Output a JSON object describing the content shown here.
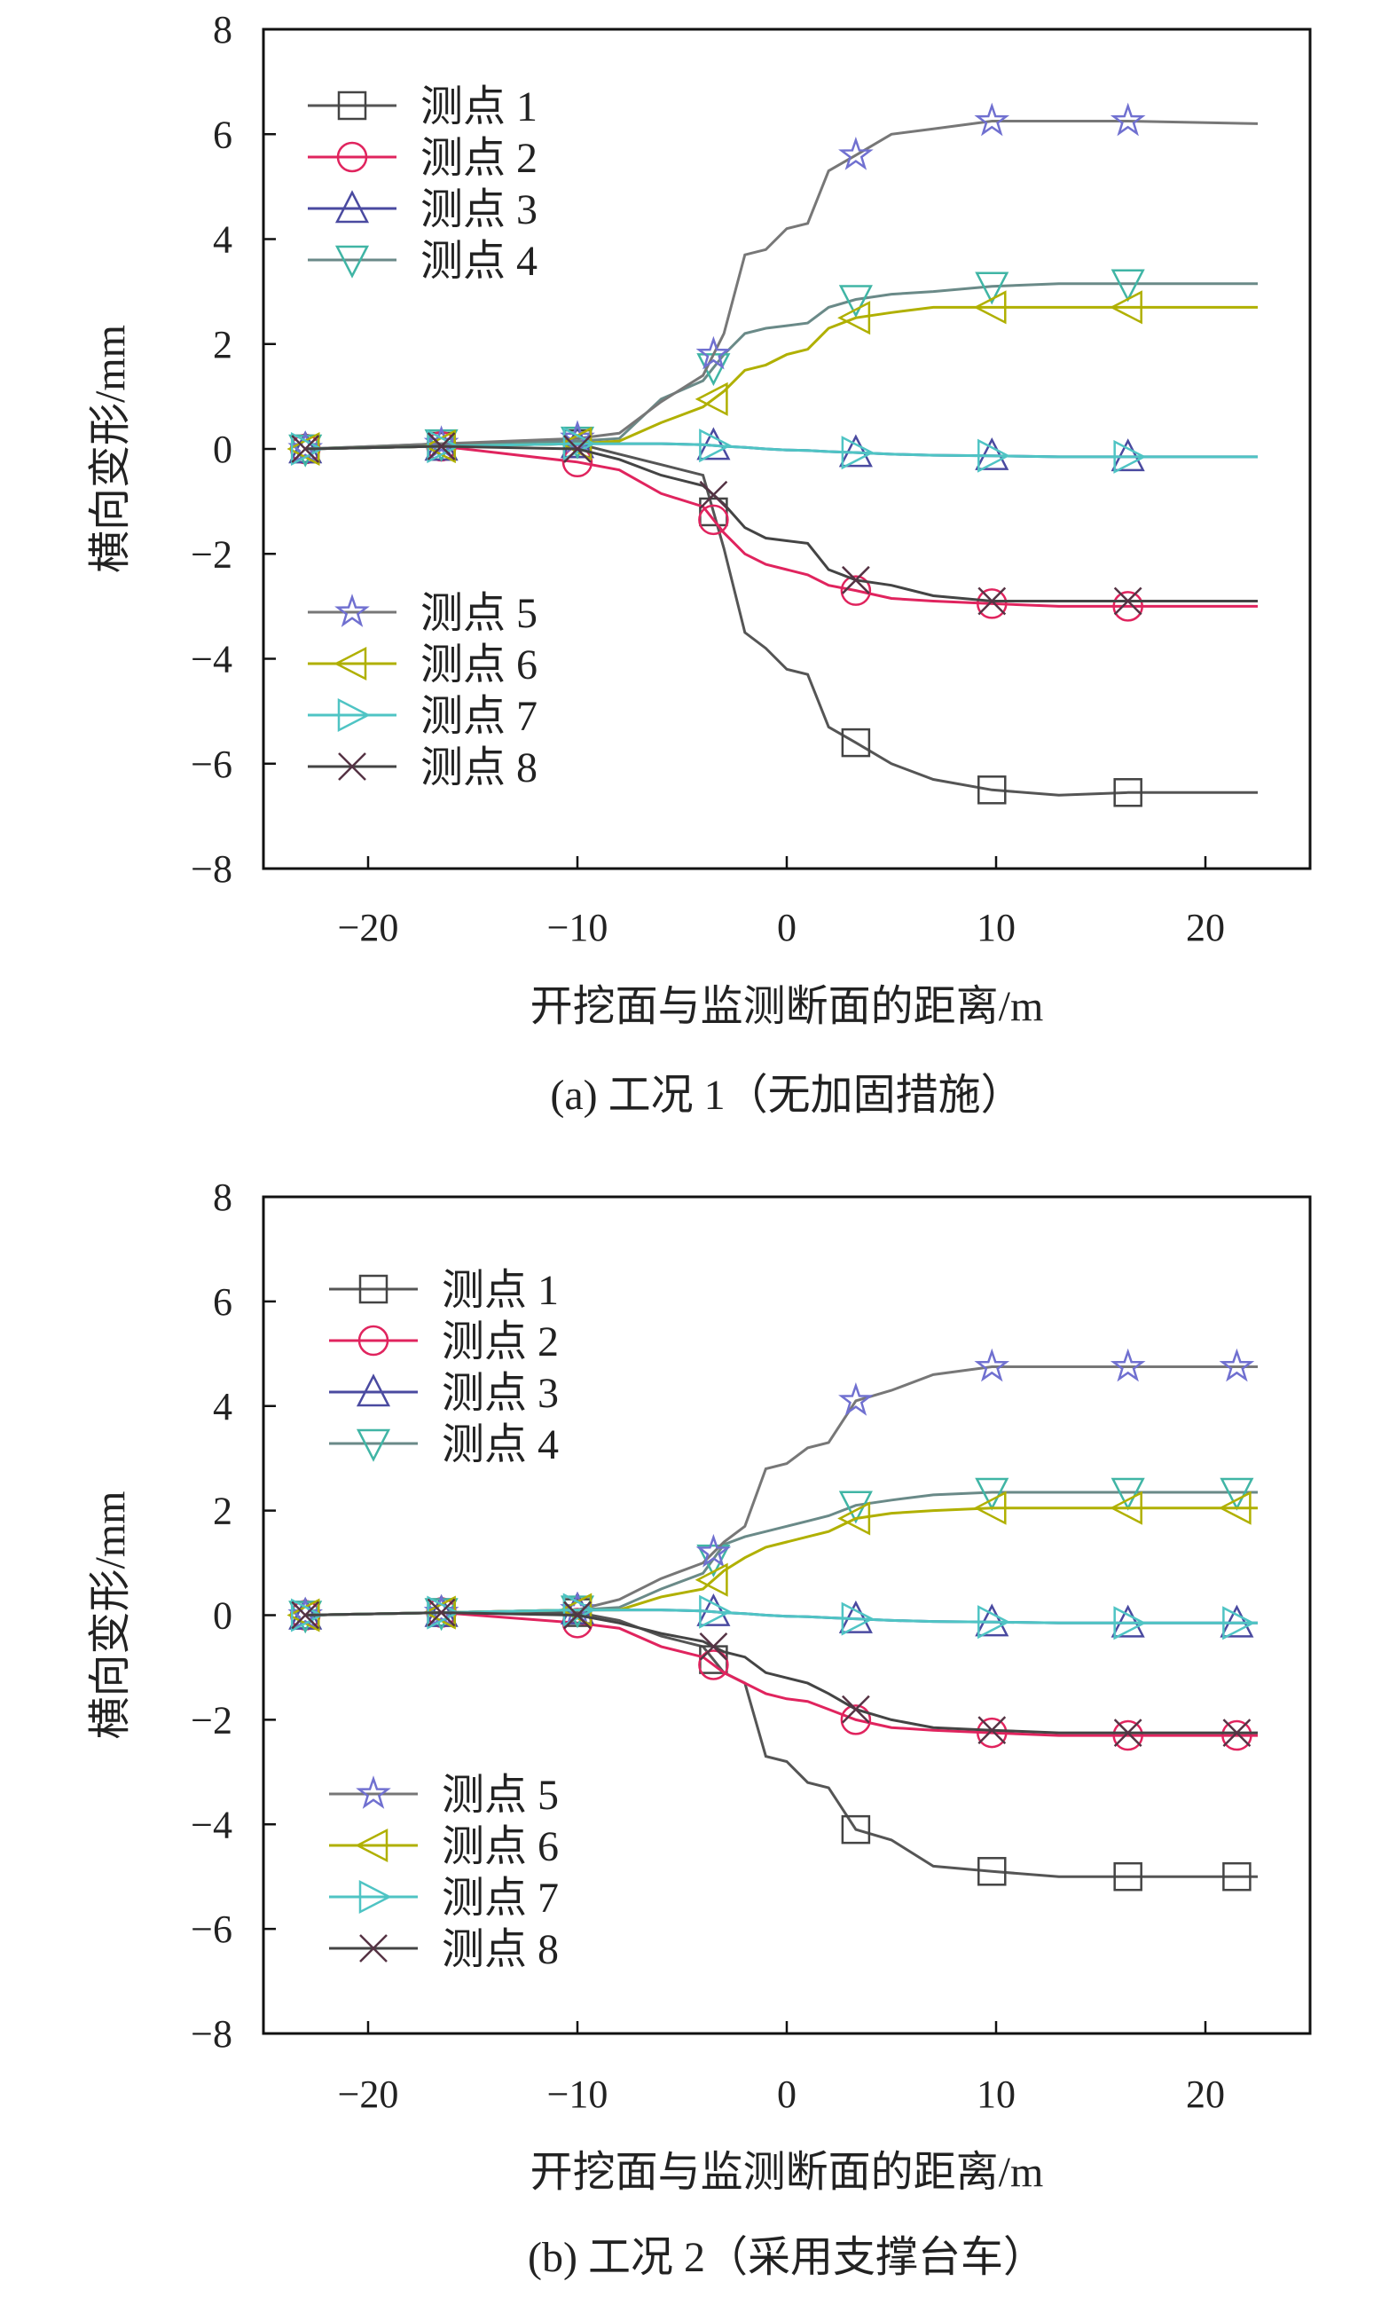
{
  "chart_data": [
    {
      "type": "line",
      "caption": "(a) 工况 1（无加固措施）",
      "xlabel": "开挖面与监测断面的距离/m",
      "ylabel": "横向变形/mm",
      "xlim": [
        -25,
        25
      ],
      "ylim": [
        -8,
        8
      ],
      "xticks": [
        -20,
        -10,
        0,
        10,
        20
      ],
      "xtick_labels": [
        "−20",
        "−10",
        "0",
        "10",
        "20"
      ],
      "yticks": [
        -8,
        -6,
        -4,
        -2,
        0,
        2,
        4,
        6,
        8
      ],
      "ytick_labels": [
        "−8",
        "−6",
        "−4",
        "−2",
        "0",
        "2",
        "4",
        "6",
        "8"
      ],
      "legend_placement": "left (two groups: upper-left 1–4, lower-left 5–8)",
      "x": [
        -23,
        -16.5,
        -10,
        -8,
        -6,
        -4,
        -3,
        -2,
        -1,
        0,
        1,
        2,
        3.3,
        5,
        7,
        9.8,
        13,
        16.3,
        22.5
      ],
      "markers_x": [
        -23,
        -16.5,
        -10,
        -3.5,
        3.3,
        9.8,
        16.3
      ],
      "series": [
        {
          "name": "测点 1",
          "marker": "square",
          "line_color": "#555555",
          "marker_color": "#444444",
          "values": [
            0,
            0.05,
            0.1,
            -0.1,
            -0.3,
            -0.5,
            -1.9,
            -3.5,
            -3.8,
            -4.2,
            -4.3,
            -5.3,
            -5.6,
            -6.0,
            -6.3,
            -6.5,
            -6.6,
            -6.55,
            -6.55
          ]
        },
        {
          "name": "测点 2",
          "marker": "circle",
          "line_color": "#e0245e",
          "marker_color": "#e0245e",
          "values": [
            0,
            0.05,
            -0.25,
            -0.4,
            -0.85,
            -1.1,
            -1.6,
            -2.0,
            -2.2,
            -2.3,
            -2.4,
            -2.6,
            -2.7,
            -2.85,
            -2.9,
            -2.95,
            -3.0,
            -3.0,
            -3.0
          ]
        },
        {
          "name": "测点 3",
          "marker": "triangle-up",
          "line_color": "#4a4aa0",
          "marker_color": "#4a4aa0",
          "values": [
            0,
            0.05,
            0.1,
            0.1,
            0.1,
            0.08,
            0.05,
            0.03,
            0.0,
            -0.02,
            -0.03,
            -0.05,
            -0.07,
            -0.1,
            -0.12,
            -0.13,
            -0.15,
            -0.15,
            -0.15
          ]
        },
        {
          "name": "测点 4",
          "marker": "triangle-down",
          "line_color": "#6a8a88",
          "marker_color": "#40b5a5",
          "values": [
            0,
            0.1,
            0.15,
            0.2,
            0.95,
            1.3,
            1.8,
            2.2,
            2.3,
            2.35,
            2.4,
            2.7,
            2.85,
            2.95,
            3.0,
            3.1,
            3.15,
            3.15,
            3.15
          ]
        },
        {
          "name": "测点 5",
          "marker": "star",
          "line_color": "#777777",
          "marker_color": "#7070d0",
          "values": [
            0,
            0.1,
            0.2,
            0.3,
            0.9,
            1.4,
            2.2,
            3.7,
            3.8,
            4.2,
            4.3,
            5.3,
            5.6,
            6.0,
            6.1,
            6.25,
            6.25,
            6.25,
            6.2
          ]
        },
        {
          "name": "测点 6",
          "marker": "triangle-left",
          "line_color": "#b0b000",
          "marker_color": "#b0b000",
          "values": [
            0,
            0.05,
            0.1,
            0.15,
            0.5,
            0.8,
            1.1,
            1.5,
            1.6,
            1.8,
            1.9,
            2.3,
            2.5,
            2.6,
            2.7,
            2.7,
            2.7,
            2.7,
            2.7
          ]
        },
        {
          "name": "测点 7",
          "marker": "triangle-right",
          "line_color": "#4fc4c4",
          "marker_color": "#4fc4c4",
          "values": [
            0,
            0.05,
            0.1,
            0.1,
            0.1,
            0.08,
            0.05,
            0.03,
            0.0,
            -0.02,
            -0.03,
            -0.05,
            -0.07,
            -0.1,
            -0.12,
            -0.13,
            -0.15,
            -0.15,
            -0.15
          ]
        },
        {
          "name": "测点 8",
          "marker": "x",
          "line_color": "#444444",
          "marker_color": "#553344",
          "values": [
            0,
            0.05,
            0.0,
            -0.2,
            -0.5,
            -0.7,
            -1.05,
            -1.5,
            -1.7,
            -1.75,
            -1.8,
            -2.3,
            -2.5,
            -2.6,
            -2.8,
            -2.9,
            -2.9,
            -2.9,
            -2.9
          ]
        }
      ]
    },
    {
      "type": "line",
      "caption": "(b) 工况 2（采用支撑台车）",
      "xlabel": "开挖面与监测断面的距离/m",
      "ylabel": "横向变形/mm",
      "xlim": [
        -25,
        25
      ],
      "ylim": [
        -8,
        8
      ],
      "xticks": [
        -20,
        -10,
        0,
        10,
        20
      ],
      "xtick_labels": [
        "−20",
        "−10",
        "0",
        "10",
        "20"
      ],
      "yticks": [
        -8,
        -6,
        -4,
        -2,
        0,
        2,
        4,
        6,
        8
      ],
      "ytick_labels": [
        "−8",
        "−6",
        "−4",
        "−2",
        "0",
        "2",
        "4",
        "6",
        "8"
      ],
      "legend_placement": "left (two groups: upper-left 1–4, lower-left 5–8)",
      "x": [
        -23,
        -16.5,
        -10,
        -8,
        -6,
        -4,
        -3,
        -2,
        -1,
        0,
        1,
        2,
        3.3,
        5,
        7,
        9.8,
        13,
        16.3,
        22.5
      ],
      "markers_x": [
        -23,
        -16.5,
        -10,
        -3.5,
        3.3,
        9.8,
        16.3,
        21.5
      ],
      "series": [
        {
          "name": "测点 1",
          "marker": "square",
          "line_color": "#555555",
          "marker_color": "#444444",
          "values": [
            0,
            0.05,
            0.05,
            -0.1,
            -0.4,
            -0.6,
            -1.1,
            -1.3,
            -2.7,
            -2.8,
            -3.2,
            -3.3,
            -4.1,
            -4.3,
            -4.8,
            -4.9,
            -5.0,
            -5.0,
            -5.0
          ]
        },
        {
          "name": "测点 2",
          "marker": "circle",
          "line_color": "#e0245e",
          "marker_color": "#e0245e",
          "values": [
            0,
            0.05,
            -0.15,
            -0.25,
            -0.6,
            -0.8,
            -1.1,
            -1.3,
            -1.5,
            -1.6,
            -1.65,
            -1.8,
            -2.0,
            -2.15,
            -2.2,
            -2.25,
            -2.3,
            -2.3,
            -2.3
          ]
        },
        {
          "name": "测点 3",
          "marker": "triangle-up",
          "line_color": "#4a4aa0",
          "marker_color": "#4a4aa0",
          "values": [
            0,
            0.05,
            0.1,
            0.1,
            0.1,
            0.08,
            0.05,
            0.03,
            0.0,
            -0.02,
            -0.03,
            -0.05,
            -0.07,
            -0.1,
            -0.12,
            -0.13,
            -0.15,
            -0.15,
            -0.15
          ]
        },
        {
          "name": "测点 4",
          "marker": "triangle-down",
          "line_color": "#6a8a88",
          "marker_color": "#40b5a5",
          "values": [
            0,
            0.05,
            0.1,
            0.15,
            0.5,
            0.8,
            1.35,
            1.5,
            1.6,
            1.7,
            1.8,
            1.9,
            2.1,
            2.2,
            2.3,
            2.35,
            2.35,
            2.35,
            2.35
          ]
        },
        {
          "name": "测点 5",
          "marker": "star",
          "line_color": "#777777",
          "marker_color": "#7070d0",
          "values": [
            0,
            0.05,
            0.1,
            0.3,
            0.7,
            1.0,
            1.4,
            1.7,
            2.8,
            2.9,
            3.2,
            3.3,
            4.1,
            4.3,
            4.6,
            4.75,
            4.75,
            4.75,
            4.75
          ]
        },
        {
          "name": "测点 6",
          "marker": "triangle-left",
          "line_color": "#b0b000",
          "marker_color": "#b0b000",
          "values": [
            0,
            0.05,
            0.1,
            0.1,
            0.35,
            0.5,
            0.85,
            1.1,
            1.3,
            1.4,
            1.5,
            1.6,
            1.85,
            1.95,
            2.0,
            2.05,
            2.05,
            2.05,
            2.05
          ]
        },
        {
          "name": "测点 7",
          "marker": "triangle-right",
          "line_color": "#4fc4c4",
          "marker_color": "#4fc4c4",
          "values": [
            0,
            0.05,
            0.1,
            0.1,
            0.1,
            0.08,
            0.05,
            0.03,
            0.0,
            -0.02,
            -0.03,
            -0.05,
            -0.07,
            -0.1,
            -0.12,
            -0.13,
            -0.15,
            -0.15,
            -0.15
          ]
        },
        {
          "name": "测点 8",
          "marker": "x",
          "line_color": "#444444",
          "marker_color": "#553344",
          "values": [
            0,
            0.05,
            0.0,
            -0.15,
            -0.35,
            -0.5,
            -0.7,
            -0.8,
            -1.1,
            -1.2,
            -1.3,
            -1.5,
            -1.8,
            -2.0,
            -2.15,
            -2.2,
            -2.25,
            -2.25,
            -2.25
          ]
        }
      ]
    }
  ]
}
